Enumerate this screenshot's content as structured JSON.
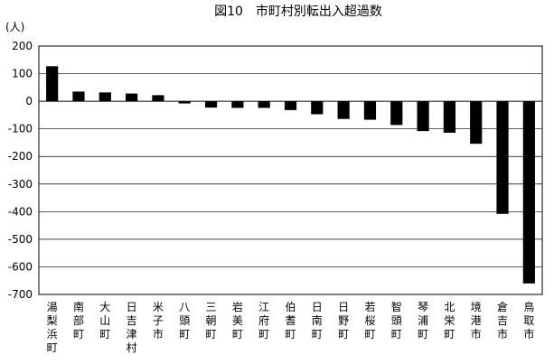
{
  "chart_data": {
    "type": "bar",
    "title": "図10　市町村別転出入超過数",
    "ylabel": "(人)",
    "xlabel": "",
    "ylim": [
      -700,
      200
    ],
    "yticks": [
      "200",
      "100",
      "0",
      "-100",
      "-200",
      "-300",
      "-400",
      "-500",
      "-600",
      "-700"
    ],
    "ytick_values": [
      200,
      100,
      0,
      -100,
      -200,
      -300,
      -400,
      -500,
      -600,
      -700
    ],
    "grid": true,
    "legend": "none",
    "bar_color": "#000000",
    "categories": [
      "湯梨浜町",
      "南部町",
      "大山町",
      "日吉津村",
      "米子市",
      "八頭町",
      "三朝町",
      "岩美町",
      "江府町",
      "伯耆町",
      "日南町",
      "日野町",
      "若桜町",
      "智頭町",
      "琴浦町",
      "北栄町",
      "境港市",
      "倉吉市",
      "鳥取市"
    ],
    "values": [
      127,
      35,
      32,
      28,
      22,
      -8,
      -23,
      -24,
      -24,
      -32,
      -47,
      -64,
      -67,
      -86,
      -108,
      -114,
      -154,
      -408,
      -660
    ]
  }
}
